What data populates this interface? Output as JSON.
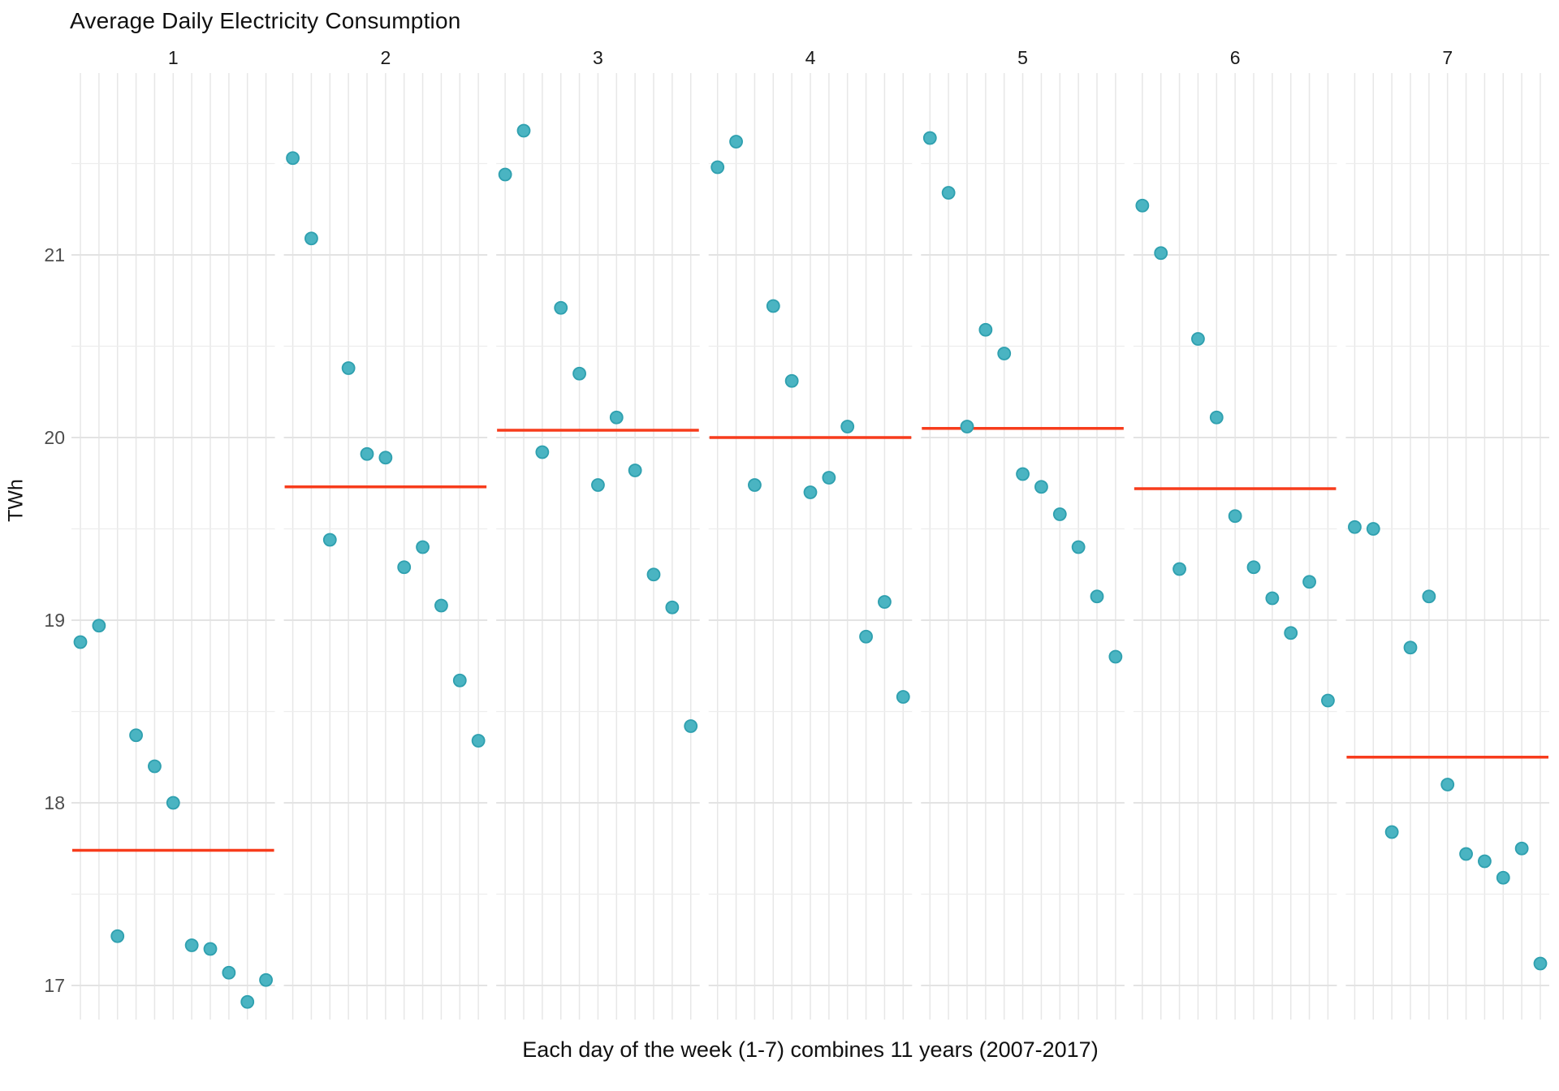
{
  "title": "Average Daily Electricity Consumption",
  "x_axis_title": "Each day of the week (1-7) combines 11 years (2007-2017)",
  "y_axis_title": "TWh",
  "y_tick_labels": [
    "21",
    "20",
    "19",
    "18",
    "17"
  ],
  "facet_labels": [
    "1",
    "2",
    "3",
    "4",
    "5",
    "6",
    "7"
  ],
  "colors": {
    "background": "#FFFFFF",
    "point_fill": "#4AB4C2",
    "point_stroke": "#2FA0AF",
    "mean_line": "#F73C1C",
    "grid_major": "#E3E3E3",
    "grid_minor": "#EDEDED",
    "grid_vertical": "#E7E7E7",
    "tick_text": "#4D4D4D",
    "strip_text": "#1A1A1A"
  },
  "chart_data": {
    "type": "scatter",
    "title": "Average Daily Electricity Consumption",
    "xlabel": "Each day of the week (1-7) combines 11 years (2007-2017)",
    "ylabel": "TWh",
    "facet_variable": "day of week",
    "facets": [
      "1",
      "2",
      "3",
      "4",
      "5",
      "6",
      "7"
    ],
    "points_per_facet": 11,
    "year_range": "2007-2017",
    "ylim": [
      16.81,
      22.0
    ],
    "y_major_ticks": [
      17,
      18,
      19,
      20,
      21
    ],
    "y_minor_ticks": [
      17.5,
      18.5,
      19.5,
      20.5,
      21.5
    ],
    "grid": "on",
    "legend_position": "none",
    "series": [
      {
        "day": "1",
        "values": [
          18.88,
          18.97,
          17.27,
          18.37,
          18.2,
          18.0,
          17.22,
          17.2,
          17.07,
          16.91,
          17.03
        ],
        "mean": 17.74
      },
      {
        "day": "2",
        "values": [
          21.53,
          21.09,
          19.44,
          20.38,
          19.91,
          19.89,
          19.29,
          19.4,
          19.08,
          18.67,
          18.34
        ],
        "mean": 19.73
      },
      {
        "day": "3",
        "values": [
          21.44,
          21.68,
          19.92,
          20.71,
          20.35,
          19.74,
          20.11,
          19.82,
          19.25,
          19.07,
          18.42
        ],
        "mean": 20.04
      },
      {
        "day": "4",
        "values": [
          21.48,
          21.62,
          19.74,
          20.72,
          20.31,
          19.7,
          19.78,
          20.06,
          18.91,
          19.1,
          18.58
        ],
        "mean": 20.0
      },
      {
        "day": "5",
        "values": [
          21.64,
          21.34,
          20.06,
          20.59,
          20.46,
          19.8,
          19.73,
          19.58,
          19.4,
          19.13,
          18.8
        ],
        "mean": 20.05
      },
      {
        "day": "6",
        "values": [
          21.27,
          21.01,
          19.28,
          20.54,
          20.11,
          19.57,
          19.29,
          19.12,
          18.93,
          19.21,
          18.56
        ],
        "mean": 19.72
      },
      {
        "day": "7",
        "values": [
          19.51,
          19.5,
          17.84,
          18.85,
          19.13,
          18.1,
          17.72,
          17.68,
          17.59,
          17.75,
          17.12
        ],
        "mean": 18.25
      }
    ]
  }
}
